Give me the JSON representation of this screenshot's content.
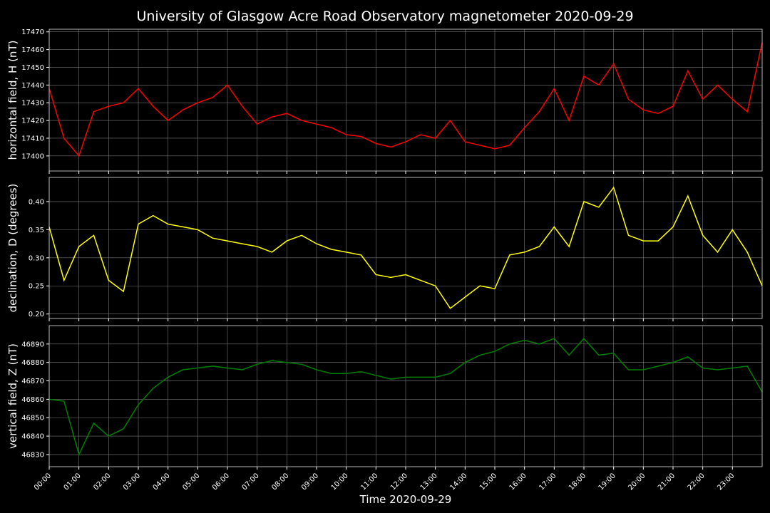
{
  "title": "University of Glasgow Acre Road Observatory magnetometer 2020-09-29",
  "chart_data": [
    {
      "type": "line",
      "ylabel": "horizontal field, H (nT)",
      "grid": true,
      "x": [
        "00:00",
        "00:30",
        "01:00",
        "01:30",
        "02:00",
        "02:30",
        "03:00",
        "03:30",
        "04:00",
        "04:30",
        "05:00",
        "05:30",
        "06:00",
        "06:30",
        "07:00",
        "07:30",
        "08:00",
        "08:30",
        "09:00",
        "09:30",
        "10:00",
        "10:30",
        "11:00",
        "11:30",
        "12:00",
        "12:30",
        "13:00",
        "13:30",
        "14:00",
        "14:30",
        "15:00",
        "15:30",
        "16:00",
        "16:30",
        "17:00",
        "17:30",
        "18:00",
        "18:30",
        "19:00",
        "19:30",
        "20:00",
        "20:30",
        "21:00",
        "21:30",
        "22:00",
        "22:30",
        "23:00",
        "23:30",
        "24:00"
      ],
      "xlim": [
        "00:00",
        "24:00"
      ],
      "ylim": [
        17391.5,
        17471.5
      ],
      "yticks": [
        17400,
        17410,
        17420,
        17430,
        17440,
        17450,
        17460,
        17470
      ],
      "series": [
        {
          "name": "H",
          "color": "#ff0000",
          "values": [
            17438,
            17410,
            17400,
            17425,
            17428,
            17430,
            17438,
            17428,
            17420,
            17426,
            17430,
            17433,
            17440,
            17428,
            17418,
            17422,
            17424,
            17420,
            17418,
            17416,
            17412,
            17411,
            17407,
            17405,
            17408,
            17412,
            17410,
            17420,
            17408,
            17406,
            17404,
            17406,
            17416,
            17425,
            17438,
            17420,
            17445,
            17440,
            17452,
            17432,
            17426,
            17424,
            17428,
            17448,
            17432,
            17440,
            17432,
            17425,
            17464
          ]
        }
      ]
    },
    {
      "type": "line",
      "ylabel": "declination, D (degrees)",
      "grid": true,
      "x": [
        "00:00",
        "00:30",
        "01:00",
        "01:30",
        "02:00",
        "02:30",
        "03:00",
        "03:30",
        "04:00",
        "04:30",
        "05:00",
        "05:30",
        "06:00",
        "06:30",
        "07:00",
        "07:30",
        "08:00",
        "08:30",
        "09:00",
        "09:30",
        "10:00",
        "10:30",
        "11:00",
        "11:30",
        "12:00",
        "12:30",
        "13:00",
        "13:30",
        "14:00",
        "14:30",
        "15:00",
        "15:30",
        "16:00",
        "16:30",
        "17:00",
        "17:30",
        "18:00",
        "18:30",
        "19:00",
        "19:30",
        "20:00",
        "20:30",
        "21:00",
        "21:30",
        "22:00",
        "22:30",
        "23:00",
        "23:30",
        "24:00"
      ],
      "xlim": [
        "00:00",
        "24:00"
      ],
      "ylim": [
        0.192,
        0.443
      ],
      "yticks": [
        {
          "value": 0.2,
          "label": "0.20"
        },
        0.25,
        {
          "value": 0.3,
          "label": "0.30"
        },
        0.35,
        {
          "value": 0.4,
          "label": "0.40"
        }
      ],
      "series": [
        {
          "name": "D",
          "color": "#ffff00",
          "values": [
            0.355,
            0.26,
            0.32,
            0.34,
            0.26,
            0.24,
            0.36,
            0.375,
            0.36,
            0.355,
            0.35,
            0.335,
            0.33,
            0.325,
            0.32,
            0.31,
            0.33,
            0.34,
            0.325,
            0.315,
            0.31,
            0.305,
            0.27,
            0.265,
            0.27,
            0.26,
            0.25,
            0.21,
            0.23,
            0.25,
            0.245,
            0.305,
            0.31,
            0.32,
            0.355,
            0.32,
            0.4,
            0.39,
            0.425,
            0.34,
            0.33,
            0.33,
            0.355,
            0.41,
            0.34,
            0.31,
            0.35,
            0.31,
            0.25
          ]
        }
      ]
    },
    {
      "type": "line",
      "ylabel": "vertical field, Z (nT)",
      "xlabel": "Time 2020-09-29",
      "grid": true,
      "x": [
        "00:00",
        "00:30",
        "01:00",
        "01:30",
        "02:00",
        "02:30",
        "03:00",
        "03:30",
        "04:00",
        "04:30",
        "05:00",
        "05:30",
        "06:00",
        "06:30",
        "07:00",
        "07:30",
        "08:00",
        "08:30",
        "09:00",
        "09:30",
        "10:00",
        "10:30",
        "11:00",
        "11:30",
        "12:00",
        "12:30",
        "13:00",
        "13:30",
        "14:00",
        "14:30",
        "15:00",
        "15:30",
        "16:00",
        "16:30",
        "17:00",
        "17:30",
        "18:00",
        "18:30",
        "19:00",
        "19:30",
        "20:00",
        "20:30",
        "21:00",
        "21:30",
        "22:00",
        "22:30",
        "23:00",
        "23:30",
        "24:00"
      ],
      "xlim": [
        "00:00",
        "24:00"
      ],
      "xticks": [
        "00:00",
        "01:00",
        "02:00",
        "03:00",
        "04:00",
        "05:00",
        "06:00",
        "07:00",
        "08:00",
        "09:00",
        "10:00",
        "11:00",
        "12:00",
        "13:00",
        "14:00",
        "15:00",
        "16:00",
        "17:00",
        "18:00",
        "19:00",
        "20:00",
        "21:00",
        "22:00",
        "23:00"
      ],
      "ylim": [
        46823.4,
        46900
      ],
      "yticks": [
        46830,
        46840,
        46850,
        46860,
        46870,
        46880,
        46890
      ],
      "series": [
        {
          "name": "Z",
          "color": "#008000",
          "values": [
            46860,
            46859,
            46830,
            46847,
            46840,
            46844,
            46857,
            46866,
            46872,
            46876,
            46877,
            46878,
            46877,
            46876,
            46879,
            46881,
            46880,
            46879,
            46876,
            46874,
            46874,
            46875,
            46873,
            46871,
            46872,
            46872,
            46872,
            46874,
            46880,
            46884,
            46886,
            46890,
            46892,
            46890,
            46893,
            46884,
            46893,
            46884,
            46885,
            46876,
            46876,
            46878,
            46880,
            46883,
            46877,
            46876,
            46877,
            46878,
            46864
          ]
        }
      ]
    }
  ]
}
